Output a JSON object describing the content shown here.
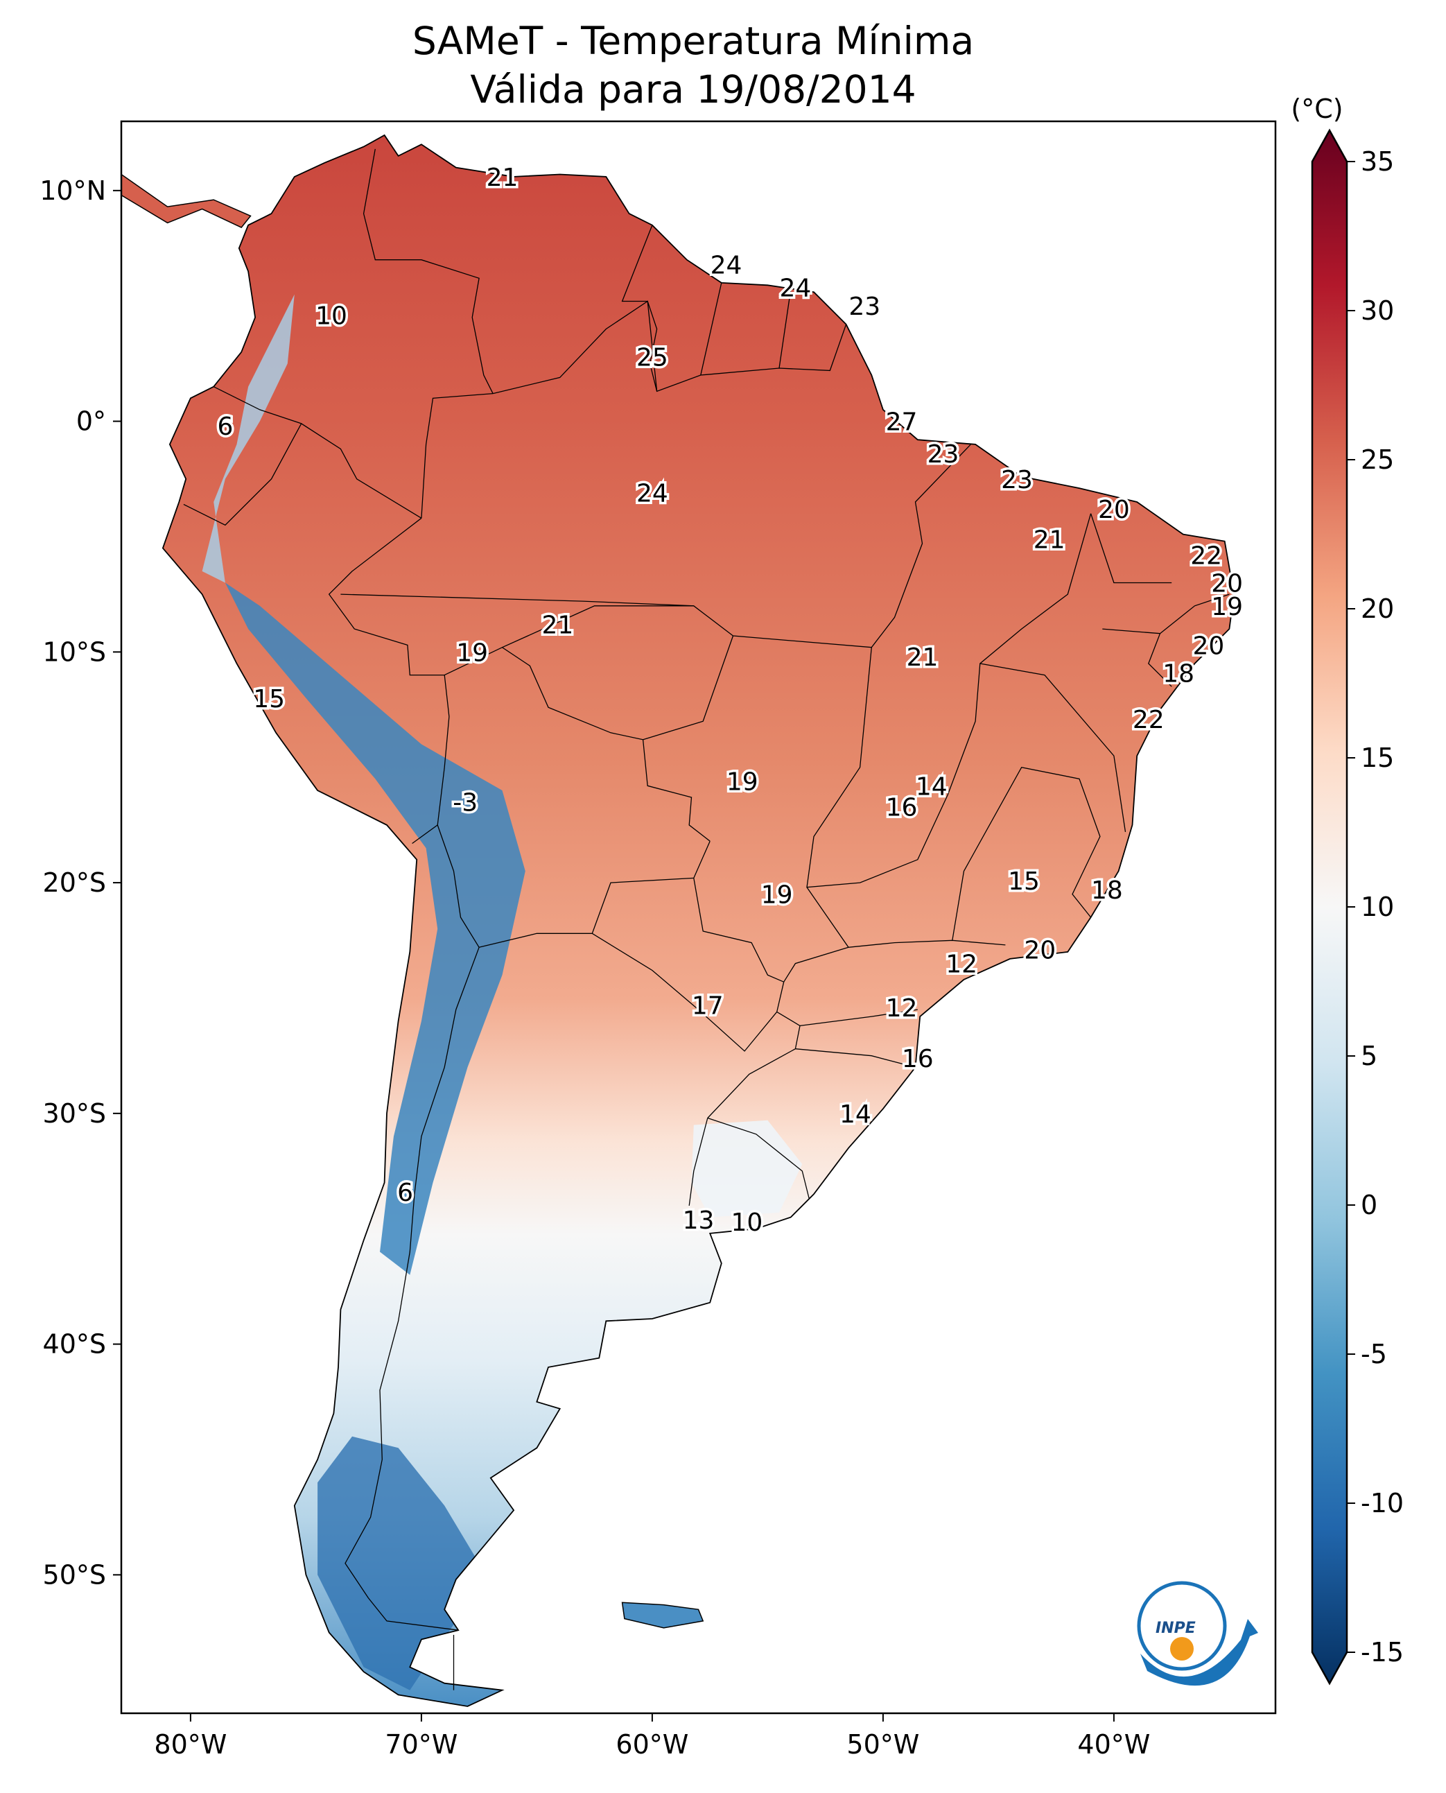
{
  "title": {
    "line1": "SAMeT - Temperatura Mínima",
    "line2": "Válida para 19/08/2014"
  },
  "map": {
    "lon_range": [
      -83,
      -33
    ],
    "lat_range": [
      -56,
      13
    ],
    "lon_ticks": [
      {
        "value": -80,
        "label": "80°W"
      },
      {
        "value": -70,
        "label": "70°W"
      },
      {
        "value": -60,
        "label": "60°W"
      },
      {
        "value": -50,
        "label": "50°W"
      },
      {
        "value": -40,
        "label": "40°W"
      }
    ],
    "lat_ticks": [
      {
        "value": 10,
        "label": "10°N"
      },
      {
        "value": 0,
        "label": "0°"
      },
      {
        "value": -10,
        "label": "10°S"
      },
      {
        "value": -20,
        "label": "20°S"
      },
      {
        "value": -30,
        "label": "30°S"
      },
      {
        "value": -40,
        "label": "40°S"
      },
      {
        "value": -50,
        "label": "50°S"
      }
    ],
    "station_labels": [
      {
        "lon": -66.5,
        "lat": 10.6,
        "text": "21"
      },
      {
        "lon": -73.9,
        "lat": 4.6,
        "text": "10"
      },
      {
        "lon": -78.5,
        "lat": -0.2,
        "text": "6"
      },
      {
        "lon": -56.8,
        "lat": 6.8,
        "text": "24"
      },
      {
        "lon": -53.8,
        "lat": 5.8,
        "text": "24"
      },
      {
        "lon": -50.8,
        "lat": 5.0,
        "text": "23"
      },
      {
        "lon": -60.0,
        "lat": 2.8,
        "text": "25"
      },
      {
        "lon": -49.2,
        "lat": 0.0,
        "text": "27"
      },
      {
        "lon": -60.0,
        "lat": -3.1,
        "text": "24"
      },
      {
        "lon": -47.4,
        "lat": -1.4,
        "text": "23"
      },
      {
        "lon": -44.2,
        "lat": -2.5,
        "text": "23"
      },
      {
        "lon": -40.0,
        "lat": -3.8,
        "text": "20"
      },
      {
        "lon": -42.8,
        "lat": -5.1,
        "text": "21"
      },
      {
        "lon": -36.0,
        "lat": -5.8,
        "text": "22"
      },
      {
        "lon": -35.1,
        "lat": -7.0,
        "text": "20"
      },
      {
        "lon": -35.1,
        "lat": -8.0,
        "text": "19"
      },
      {
        "lon": -35.9,
        "lat": -9.7,
        "text": "20"
      },
      {
        "lon": -37.2,
        "lat": -10.9,
        "text": "18"
      },
      {
        "lon": -38.5,
        "lat": -12.9,
        "text": "22"
      },
      {
        "lon": -64.1,
        "lat": -8.8,
        "text": "21"
      },
      {
        "lon": -67.8,
        "lat": -10.0,
        "text": "19"
      },
      {
        "lon": -48.3,
        "lat": -10.2,
        "text": "21"
      },
      {
        "lon": -76.6,
        "lat": -12.0,
        "text": "15"
      },
      {
        "lon": -68.1,
        "lat": -16.5,
        "text": "-3"
      },
      {
        "lon": -56.1,
        "lat": -15.6,
        "text": "19"
      },
      {
        "lon": -47.9,
        "lat": -15.8,
        "text": "14"
      },
      {
        "lon": -49.2,
        "lat": -16.7,
        "text": "16"
      },
      {
        "lon": -43.9,
        "lat": -19.9,
        "text": "15"
      },
      {
        "lon": -40.3,
        "lat": -20.3,
        "text": "18"
      },
      {
        "lon": -54.6,
        "lat": -20.5,
        "text": "19"
      },
      {
        "lon": -43.2,
        "lat": -22.9,
        "text": "20"
      },
      {
        "lon": -46.6,
        "lat": -23.5,
        "text": "12"
      },
      {
        "lon": -57.6,
        "lat": -25.3,
        "text": "17"
      },
      {
        "lon": -49.2,
        "lat": -25.4,
        "text": "12"
      },
      {
        "lon": -48.5,
        "lat": -27.6,
        "text": "16"
      },
      {
        "lon": -51.2,
        "lat": -30.0,
        "text": "14"
      },
      {
        "lon": -70.7,
        "lat": -33.4,
        "text": "6"
      },
      {
        "lon": -58.0,
        "lat": -34.6,
        "text": "13"
      },
      {
        "lon": -55.9,
        "lat": -34.7,
        "text": "10"
      }
    ]
  },
  "colorbar": {
    "unit": "(°C)",
    "ticks": [
      {
        "value": 35,
        "label": "35"
      },
      {
        "value": 30,
        "label": "30"
      },
      {
        "value": 25,
        "label": "25"
      },
      {
        "value": 20,
        "label": "20"
      },
      {
        "value": 15,
        "label": "15"
      },
      {
        "value": 10,
        "label": "10"
      },
      {
        "value": 5,
        "label": "5"
      },
      {
        "value": 0,
        "label": "0"
      },
      {
        "value": -5,
        "label": "-5"
      },
      {
        "value": -10,
        "label": "-10"
      },
      {
        "value": -15,
        "label": "-15"
      }
    ],
    "colors": [
      "#053061",
      "#2166ac",
      "#4393c3",
      "#92c5de",
      "#d1e5f0",
      "#f7f7f7",
      "#fddbc7",
      "#f4a582",
      "#d6604d",
      "#b2182b",
      "#67001f"
    ]
  },
  "logo": {
    "text": "INPE"
  }
}
